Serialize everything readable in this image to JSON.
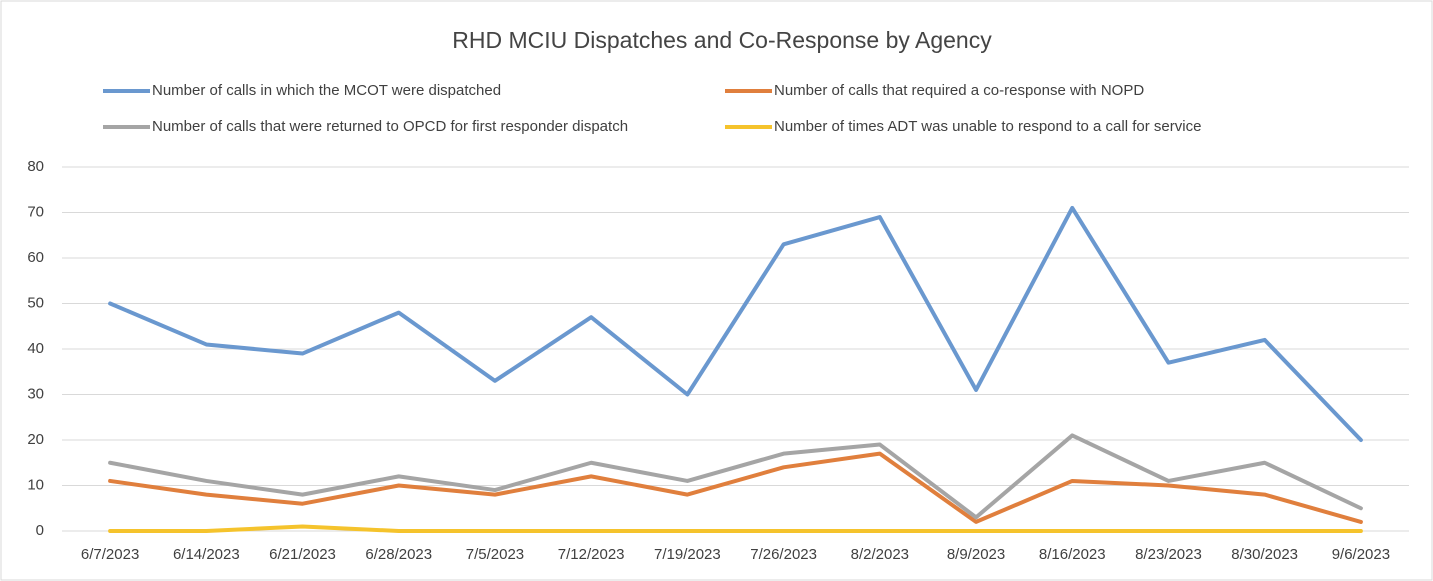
{
  "chart_data": {
    "type": "line",
    "title": "RHD MCIU Dispatches and Co-Response by Agency",
    "categories": [
      "6/7/2023",
      "6/14/2023",
      "6/21/2023",
      "6/28/2023",
      "7/5/2023",
      "7/12/2023",
      "7/19/2023",
      "7/26/2023",
      "8/2/2023",
      "8/9/2023",
      "8/16/2023",
      "8/23/2023",
      "8/30/2023",
      "9/6/2023"
    ],
    "series": [
      {
        "name": "Number of calls in which the MCOT were dispatched",
        "color": "#6a98cf",
        "values": [
          50,
          41,
          39,
          48,
          33,
          47,
          30,
          63,
          69,
          31,
          71,
          37,
          42,
          20
        ]
      },
      {
        "name": "Number of calls that required a co-response with NOPD",
        "color": "#e07f3d",
        "values": [
          11,
          8,
          6,
          10,
          8,
          12,
          8,
          14,
          17,
          2,
          11,
          10,
          8,
          2
        ]
      },
      {
        "name": "Number of calls that were returned to OPCD for first responder dispatch",
        "color": "#a5a5a5",
        "values": [
          15,
          11,
          8,
          12,
          9,
          15,
          11,
          17,
          19,
          3,
          21,
          11,
          15,
          5
        ]
      },
      {
        "name": "Number of times ADT was unable to respond to a call for service",
        "color": "#f5c32c",
        "values": [
          0,
          0,
          1,
          0,
          0,
          0,
          0,
          0,
          0,
          0,
          0,
          0,
          0,
          0
        ]
      }
    ],
    "ylim": [
      0,
      80
    ],
    "yticks": [
      0,
      10,
      20,
      30,
      40,
      50,
      60,
      70,
      80
    ],
    "grid": true,
    "legend": "top"
  }
}
